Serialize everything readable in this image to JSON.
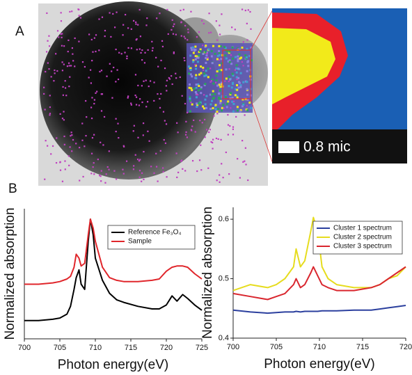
{
  "panels": {
    "a_label": "A",
    "b_label": "B",
    "scale_bar": "0.8 mic"
  },
  "chart_data": [
    {
      "type": "line",
      "xlabel": "Photon energy(eV)",
      "ylabel": "Normalized absorption",
      "x": [
        700,
        702,
        704,
        705,
        706,
        706.5,
        707,
        707.3,
        707.7,
        708,
        708.5,
        709,
        709.3,
        709.7,
        710,
        711,
        712,
        713,
        714,
        716,
        718,
        719,
        720,
        720.8,
        721.5,
        722.3,
        723,
        724,
        725
      ],
      "xlim": [
        700,
        725
      ],
      "xticks": [
        700,
        705,
        710,
        715,
        720,
        725
      ],
      "ylim": [
        0,
        1
      ],
      "legend": "upper right",
      "series": [
        {
          "name": "Reference Fe₃O₄",
          "color": "#000000",
          "values": [
            0.14,
            0.14,
            0.15,
            0.16,
            0.19,
            0.25,
            0.38,
            0.47,
            0.53,
            0.42,
            0.38,
            0.75,
            0.92,
            0.8,
            0.62,
            0.45,
            0.35,
            0.3,
            0.28,
            0.25,
            0.23,
            0.23,
            0.26,
            0.33,
            0.29,
            0.34,
            0.31,
            0.26,
            0.22
          ]
        },
        {
          "name": "Sample",
          "color": "#e0262b",
          "values": [
            0.42,
            0.42,
            0.43,
            0.44,
            0.46,
            0.48,
            0.55,
            0.65,
            0.62,
            0.56,
            0.58,
            0.8,
            0.92,
            0.85,
            0.75,
            0.55,
            0.47,
            0.45,
            0.44,
            0.44,
            0.45,
            0.46,
            0.52,
            0.55,
            0.56,
            0.56,
            0.55,
            0.5,
            0.46
          ]
        }
      ]
    },
    {
      "type": "line",
      "xlabel": "Photon energy(eV)",
      "ylabel": "Normalized absorption",
      "x": [
        700,
        702,
        704,
        705,
        706,
        707,
        707.3,
        707.8,
        708.3,
        709,
        709.3,
        709.8,
        710.3,
        711,
        712,
        714,
        716,
        717,
        718,
        719,
        720
      ],
      "xlim": [
        700,
        720
      ],
      "xticks": [
        700,
        705,
        710,
        715,
        720
      ],
      "ylim": [
        0.4,
        0.62
      ],
      "yticks": [
        0.4,
        0.5,
        0.6
      ],
      "legend": "upper right",
      "series": [
        {
          "name": "Cluster 1 spectrum",
          "color": "#2b3f9e",
          "values": [
            0.447,
            0.444,
            0.442,
            0.443,
            0.444,
            0.444,
            0.445,
            0.444,
            0.445,
            0.445,
            0.445,
            0.445,
            0.446,
            0.446,
            0.446,
            0.447,
            0.447,
            0.449,
            0.451,
            0.453,
            0.455
          ]
        },
        {
          "name": "Cluster 2 spectrum",
          "color": "#e6dc1e",
          "values": [
            0.48,
            0.49,
            0.485,
            0.49,
            0.5,
            0.52,
            0.55,
            0.52,
            0.53,
            0.58,
            0.603,
            0.58,
            0.52,
            0.5,
            0.49,
            0.485,
            0.485,
            0.49,
            0.5,
            0.505,
            0.52
          ]
        },
        {
          "name": "Cluster 3 spectrum",
          "color": "#d9262e",
          "values": [
            0.475,
            0.47,
            0.465,
            0.47,
            0.475,
            0.49,
            0.5,
            0.485,
            0.49,
            0.51,
            0.52,
            0.505,
            0.49,
            0.485,
            0.48,
            0.48,
            0.485,
            0.49,
            0.5,
            0.51,
            0.52
          ]
        }
      ]
    }
  ]
}
